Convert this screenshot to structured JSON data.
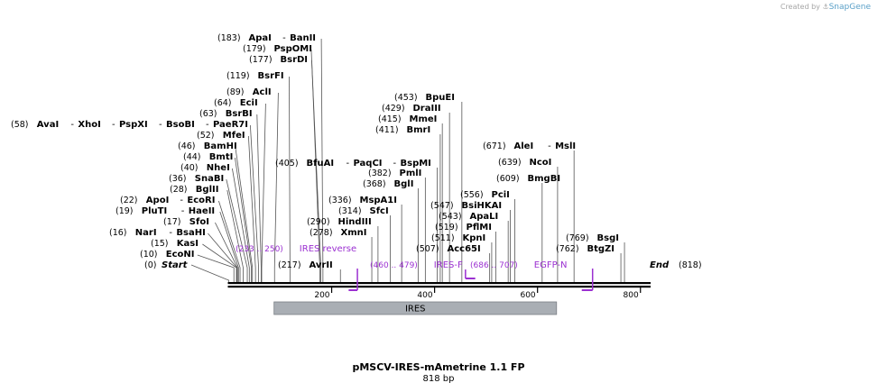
{
  "credit": {
    "prefix": "Created by",
    "brand": "SnapGene"
  },
  "title": "pMSCV-IRES-mAmetrine 1.1 FP",
  "length_label": "818 bp",
  "axis": {
    "start": 0,
    "end": 818,
    "ticks": [
      200,
      400,
      600,
      800
    ]
  },
  "colors": {
    "feature": "#9b30d1",
    "ires_fill": "#a9aeb4",
    "ruler": "#000000"
  },
  "start_label": {
    "num": "(0)",
    "name": "Start"
  },
  "end_label": {
    "name": "End",
    "num": "(818)"
  },
  "site_rows": [
    {
      "pos": 183,
      "num": "(183)",
      "names": [
        "ApaI",
        "BanII"
      ]
    },
    {
      "pos": 179,
      "num": "(179)",
      "names": [
        "PspOMI"
      ]
    },
    {
      "pos": 177,
      "num": "(177)",
      "names": [
        "BsrDI"
      ]
    },
    {
      "pos": 119,
      "num": "(119)",
      "names": [
        "BsrFI"
      ]
    },
    {
      "pos": 89,
      "num": "(89)",
      "names": [
        "AclI"
      ]
    },
    {
      "pos": 64,
      "num": "(64)",
      "names": [
        "EciI"
      ]
    },
    {
      "pos": 63,
      "num": "(63)",
      "names": [
        "BsrBI"
      ]
    },
    {
      "pos": 58,
      "num": "(58)",
      "names": [
        "AvaI",
        "XhoI",
        "PspXI",
        "BsoBI",
        "PaeR7I"
      ]
    },
    {
      "pos": 52,
      "num": "(52)",
      "names": [
        "MfeI"
      ]
    },
    {
      "pos": 46,
      "num": "(46)",
      "names": [
        "BamHI"
      ]
    },
    {
      "pos": 44,
      "num": "(44)",
      "names": [
        "BmtI"
      ]
    },
    {
      "pos": 40,
      "num": "(40)",
      "names": [
        "NheI"
      ]
    },
    {
      "pos": 36,
      "num": "(36)",
      "names": [
        "SnaBI"
      ]
    },
    {
      "pos": 28,
      "num": "(28)",
      "names": [
        "BglII"
      ]
    },
    {
      "pos": 22,
      "num": "(22)",
      "names": [
        "ApoI",
        "EcoRI"
      ]
    },
    {
      "pos": 19,
      "num": "(19)",
      "names": [
        "PluTI",
        "HaeII"
      ]
    },
    {
      "pos": 17,
      "num": "(17)",
      "names": [
        "SfoI"
      ]
    },
    {
      "pos": 16,
      "num": "(16)",
      "names": [
        "NarI",
        "BsaHI"
      ]
    },
    {
      "pos": 15,
      "num": "(15)",
      "names": [
        "KasI"
      ]
    },
    {
      "pos": 10,
      "num": "(10)",
      "names": [
        "EcoNI"
      ]
    },
    {
      "pos": 405,
      "num": "(405)",
      "names": [
        "BfuAI",
        "PaqCI",
        "BspMI"
      ]
    },
    {
      "pos": 382,
      "num": "(382)",
      "names": [
        "PmlI"
      ]
    },
    {
      "pos": 368,
      "num": "(368)",
      "names": [
        "BglI"
      ]
    },
    {
      "pos": 336,
      "num": "(336)",
      "names": [
        "MspA1I"
      ]
    },
    {
      "pos": 314,
      "num": "(314)",
      "names": [
        "SfcI"
      ]
    },
    {
      "pos": 290,
      "num": "(290)",
      "names": [
        "HindIII"
      ]
    },
    {
      "pos": 278,
      "num": "(278)",
      "names": [
        "XmnI"
      ]
    },
    {
      "pos": 217,
      "num": "(217)",
      "names": [
        "AvrII"
      ]
    },
    {
      "pos": 453,
      "num": "(453)",
      "names": [
        "BpuEI"
      ]
    },
    {
      "pos": 429,
      "num": "(429)",
      "names": [
        "DraIII"
      ]
    },
    {
      "pos": 415,
      "num": "(415)",
      "names": [
        "MmeI"
      ]
    },
    {
      "pos": 411,
      "num": "(411)",
      "names": [
        "BmrI"
      ]
    },
    {
      "pos": 556,
      "num": "(556)",
      "names": [
        "PciI"
      ]
    },
    {
      "pos": 547,
      "num": "(547)",
      "names": [
        "BsiHKAI"
      ]
    },
    {
      "pos": 543,
      "num": "(543)",
      "names": [
        "ApaLI"
      ]
    },
    {
      "pos": 519,
      "num": "(519)",
      "names": [
        "PflMI"
      ]
    },
    {
      "pos": 511,
      "num": "(511)",
      "names": [
        "KpnI"
      ]
    },
    {
      "pos": 507,
      "num": "(507)",
      "names": [
        "Acc65I"
      ]
    },
    {
      "pos": 671,
      "num": "(671)",
      "names": [
        "AleI",
        "MslI"
      ]
    },
    {
      "pos": 639,
      "num": "(639)",
      "names": [
        "NcoI"
      ]
    },
    {
      "pos": 609,
      "num": "(609)",
      "names": [
        "BmgBI"
      ]
    },
    {
      "pos": 769,
      "num": "(769)",
      "names": [
        "BsgI"
      ]
    },
    {
      "pos": 762,
      "num": "(762)",
      "names": [
        "BtgZI"
      ]
    }
  ],
  "primers": [
    {
      "range": "(233 .. 250)",
      "name": "IRES reverse",
      "start": 233,
      "end": 250,
      "direction": "reverse"
    },
    {
      "range": "(460 .. 479)",
      "name": "IRES-F",
      "start": 460,
      "end": 479,
      "direction": "forward"
    },
    {
      "range": "(686 .. 707)",
      "name": "EGFP-N",
      "start": 686,
      "end": 707,
      "direction": "reverse"
    }
  ],
  "features": [
    {
      "name": "IRES",
      "start": 88,
      "end": 637
    }
  ]
}
